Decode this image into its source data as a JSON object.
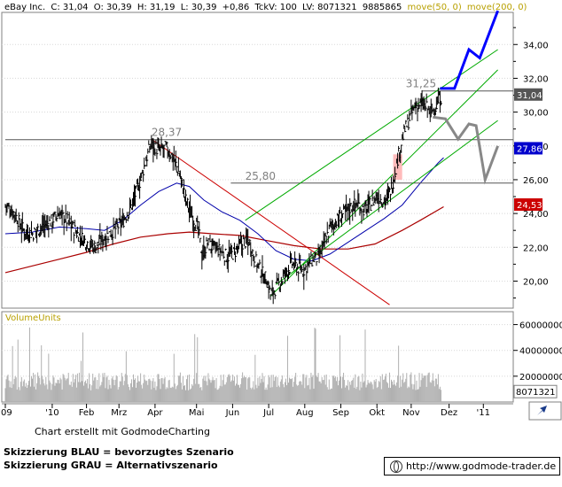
{
  "chart_data": {
    "type": "candlestick",
    "header": {
      "name": "eBay Inc.",
      "close": "C: 31,04",
      "open": "O: 30,39",
      "high": "H: 31,19",
      "low": "L: 30,39",
      "change": "+0,86",
      "tckv": "TckV: 100",
      "lv": "LV: 8071321",
      "volume": "9885865",
      "ma50_label": "move(50, 0)",
      "ma200_label": "move(200, 0)"
    },
    "y_axis": {
      "ticks": [
        20,
        22,
        24,
        26,
        28,
        30,
        32,
        34
      ],
      "tick_labels": [
        "20,00",
        "22,00",
        "24,00",
        "26,00",
        "28,00",
        "30,00",
        "32,00",
        "34,00"
      ],
      "range": [
        18.4,
        35.9
      ]
    },
    "x_axis": {
      "labels": [
        "'09",
        "'10",
        "Feb",
        "Mrz",
        "Apr",
        "Mai",
        "Jun",
        "Jul",
        "Aug",
        "Sep",
        "Okt",
        "Nov",
        "Dez",
        "'11"
      ],
      "positions": [
        -0.5,
        2.1,
        4.0,
        5.8,
        7.8,
        10.1,
        12.1,
        14.1,
        16.1,
        18.1,
        20.1,
        22.0,
        24.1,
        26.0
      ]
    },
    "price_labels": [
      {
        "text": "28,37",
        "value": 28.37,
        "x": 7.6
      },
      {
        "text": "25,80",
        "value": 25.8,
        "x": 12.8
      },
      {
        "text": "31,25",
        "value": 31.25,
        "x": 21.7
      }
    ],
    "current_tags": [
      {
        "text": "31,04",
        "value": 31.04,
        "color": "#555555"
      },
      {
        "text": "27,86",
        "value": 27.86,
        "color": "#0000cc"
      },
      {
        "text": "24,53",
        "value": 24.53,
        "color": "#cc0000"
      }
    ],
    "horizontal_lines": [
      {
        "value": 28.37,
        "x_start": -0.5,
        "x_end": 27.0
      },
      {
        "value": 25.8,
        "x_start": 12.0,
        "x_end": 27.0
      },
      {
        "value": 31.25,
        "x_start": 22.6,
        "x_end": 27.0
      }
    ],
    "price_series": [
      [
        -0.5,
        24.5
      ],
      [
        0.0,
        24.0
      ],
      [
        0.5,
        23.0
      ],
      [
        1.0,
        22.8
      ],
      [
        1.5,
        23.2
      ],
      [
        2.0,
        23.5
      ],
      [
        2.5,
        24.0
      ],
      [
        3.0,
        23.5
      ],
      [
        3.5,
        22.8
      ],
      [
        4.0,
        22.3
      ],
      [
        4.5,
        22.0
      ],
      [
        5.0,
        22.6
      ],
      [
        5.5,
        23.0
      ],
      [
        6.0,
        23.5
      ],
      [
        6.5,
        24.5
      ],
      [
        7.0,
        26.0
      ],
      [
        7.3,
        27.2
      ],
      [
        7.6,
        28.2
      ],
      [
        8.0,
        27.7
      ],
      [
        8.4,
        27.9
      ],
      [
        8.8,
        27.3
      ],
      [
        9.2,
        26.2
      ],
      [
        9.5,
        24.8
      ],
      [
        9.8,
        24.0
      ],
      [
        10.2,
        23.0
      ],
      [
        10.4,
        21.5
      ],
      [
        10.7,
        22.2
      ],
      [
        11.0,
        22.0
      ],
      [
        11.4,
        21.8
      ],
      [
        11.8,
        21.4
      ],
      [
        12.2,
        21.7
      ],
      [
        12.7,
        22.3
      ],
      [
        13.0,
        22.4
      ],
      [
        13.3,
        21.4
      ],
      [
        13.6,
        20.7
      ],
      [
        14.0,
        20.0
      ],
      [
        14.2,
        19.2
      ],
      [
        14.5,
        19.6
      ],
      [
        14.8,
        20.0
      ],
      [
        15.1,
        20.6
      ],
      [
        15.4,
        21.0
      ],
      [
        15.7,
        20.8
      ],
      [
        16.0,
        20.6
      ],
      [
        16.3,
        21.0
      ],
      [
        16.6,
        21.3
      ],
      [
        16.9,
        21.4
      ],
      [
        17.2,
        22.3
      ],
      [
        17.5,
        23.2
      ],
      [
        17.8,
        23.5
      ],
      [
        18.1,
        23.8
      ],
      [
        18.4,
        24.2
      ],
      [
        18.7,
        24.4
      ],
      [
        19.0,
        24.6
      ],
      [
        19.4,
        24.2
      ],
      [
        19.8,
        24.6
      ],
      [
        20.1,
        25.0
      ],
      [
        20.4,
        24.8
      ],
      [
        20.7,
        24.9
      ],
      [
        21.0,
        25.9
      ],
      [
        21.3,
        27.5
      ],
      [
        21.6,
        28.8
      ],
      [
        21.9,
        29.6
      ],
      [
        22.2,
        30.3
      ],
      [
        22.5,
        30.5
      ],
      [
        22.8,
        30.3
      ],
      [
        23.1,
        30.0
      ],
      [
        23.4,
        30.4
      ],
      [
        23.7,
        31.0
      ]
    ],
    "ma50_series": [
      [
        -0.5,
        22.8
      ],
      [
        1.0,
        22.9
      ],
      [
        2.5,
        23.2
      ],
      [
        4.0,
        23.1
      ],
      [
        5.0,
        23.0
      ],
      [
        6.0,
        23.6
      ],
      [
        7.0,
        24.5
      ],
      [
        8.0,
        25.3
      ],
      [
        9.0,
        25.8
      ],
      [
        9.7,
        25.6
      ],
      [
        10.5,
        24.8
      ],
      [
        11.5,
        24.1
      ],
      [
        12.5,
        23.6
      ],
      [
        13.5,
        22.8
      ],
      [
        14.5,
        21.8
      ],
      [
        15.5,
        21.3
      ],
      [
        16.5,
        21.2
      ],
      [
        17.5,
        21.6
      ],
      [
        18.5,
        22.3
      ],
      [
        19.5,
        23.0
      ],
      [
        20.5,
        23.7
      ],
      [
        21.5,
        24.5
      ],
      [
        22.5,
        25.8
      ],
      [
        23.5,
        27.0
      ],
      [
        23.8,
        27.3
      ]
    ],
    "ma200_series": [
      [
        -0.5,
        20.5
      ],
      [
        1.0,
        20.9
      ],
      [
        2.5,
        21.3
      ],
      [
        4.0,
        21.7
      ],
      [
        5.5,
        22.2
      ],
      [
        7.0,
        22.6
      ],
      [
        8.5,
        22.8
      ],
      [
        9.7,
        22.9
      ],
      [
        11.0,
        22.8
      ],
      [
        12.5,
        22.7
      ],
      [
        14.0,
        22.4
      ],
      [
        15.5,
        22.1
      ],
      [
        17.0,
        21.9
      ],
      [
        18.5,
        21.9
      ],
      [
        20.0,
        22.2
      ],
      [
        21.5,
        23.0
      ],
      [
        22.5,
        23.6
      ],
      [
        23.8,
        24.4
      ]
    ],
    "trend_lines": [
      {
        "color": "#cc0000",
        "points": [
          [
            7.6,
            28.4
          ],
          [
            20.8,
            18.6
          ]
        ]
      },
      {
        "color": "#00aa00",
        "points": [
          [
            14.2,
            19.1
          ],
          [
            26.8,
            32.5
          ]
        ]
      },
      {
        "color": "#00aa00",
        "points": [
          [
            14.5,
            19.8
          ],
          [
            26.8,
            29.5
          ]
        ]
      },
      {
        "color": "#00aa00",
        "points": [
          [
            12.8,
            23.6
          ],
          [
            26.8,
            33.7
          ]
        ]
      }
    ],
    "scenarios": [
      {
        "name": "Skizzierung BLAU = bevorzugtes Szenario",
        "color": "#0000ff",
        "points": [
          [
            23.6,
            31.4
          ],
          [
            24.4,
            31.4
          ],
          [
            25.2,
            33.7
          ],
          [
            25.8,
            33.2
          ],
          [
            26.8,
            36.0
          ]
        ]
      },
      {
        "name": "Skizzierung GRAU = Alternativszenario",
        "color": "#888888",
        "points": [
          [
            23.2,
            29.7
          ],
          [
            23.9,
            29.6
          ],
          [
            24.6,
            28.4
          ],
          [
            25.2,
            29.3
          ],
          [
            25.6,
            29.2
          ],
          [
            26.1,
            26.0
          ],
          [
            26.8,
            28.0
          ]
        ]
      }
    ],
    "highlight_box": {
      "color": "#ffbbbb",
      "x": [
        21.0,
        21.5
      ],
      "y": [
        26.0,
        27.5
      ]
    },
    "volume": {
      "label": "VolumeUnits",
      "ticks": [
        20000000,
        40000000,
        60000000
      ],
      "tick_labels": [
        "20000000",
        "40000000",
        "60000000"
      ],
      "range": [
        0,
        70000000
      ],
      "last_value": 8071321,
      "last_label": "8071321"
    }
  },
  "footer": {
    "credit": "Chart erstellt mit GodmodeCharting",
    "legend_blue": "Skizzierung BLAU = bevorzugtes Szenario",
    "legend_grey": "Skizzierung GRAU = Alternativszenario",
    "url": "http://www.godmode-trader.de"
  }
}
